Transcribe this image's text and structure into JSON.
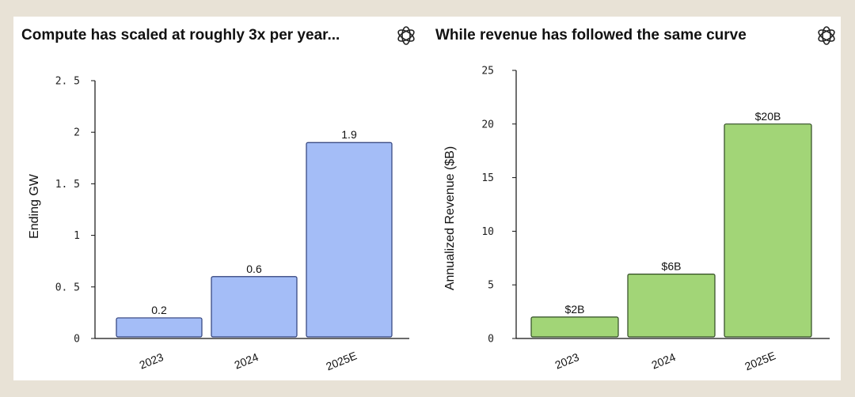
{
  "chart_data": [
    {
      "type": "bar",
      "title": "Compute has scaled at roughly 3x per year...",
      "xlabel": "",
      "ylabel": "Ending GW",
      "categories": [
        "2023",
        "2024",
        "2025E"
      ],
      "values": [
        0.2,
        0.6,
        1.9
      ],
      "data_labels": [
        "0.2",
        "0.6",
        "1.9"
      ],
      "ylim": [
        0,
        2.5
      ],
      "yticks": [
        0,
        0.5,
        1,
        1.5,
        2,
        2.5
      ],
      "ytick_labels": [
        "0",
        "0. 5",
        "1",
        "1. 5",
        "2",
        "2. 5"
      ],
      "grid": false,
      "colors": {
        "bar_fill": "#a4bdf7",
        "bar_stroke": "#2e3f7a"
      },
      "icon": "openai-logo-icon"
    },
    {
      "type": "bar",
      "title": "While revenue has followed the same curve",
      "xlabel": "",
      "ylabel": "Annualized Revenue ($B)",
      "categories": [
        "2023",
        "2024",
        "2025E"
      ],
      "values": [
        2,
        6,
        20
      ],
      "data_labels": [
        "$2B",
        "$6B",
        "$20B"
      ],
      "ylim": [
        0,
        25
      ],
      "yticks": [
        0,
        5,
        10,
        15,
        20,
        25
      ],
      "ytick_labels": [
        "0",
        "5",
        "10",
        "15",
        "20",
        "25"
      ],
      "grid": false,
      "colors": {
        "bar_fill": "#a2d577",
        "bar_stroke": "#2f4a22"
      },
      "icon": "openai-logo-icon"
    }
  ]
}
